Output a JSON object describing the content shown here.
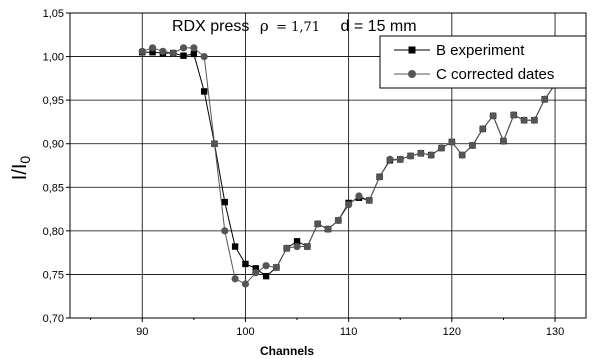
{
  "chart_data": {
    "type": "line",
    "title": "RDX press",
    "title_rho_symbol": "ρ",
    "title_rho_value": "= 1,71",
    "title_d": "d = 15 mm",
    "xlabel": "Channels",
    "ylabel_main": "I/I",
    "ylabel_sub": "0",
    "xlim": [
      83,
      133
    ],
    "ylim": [
      0.7,
      1.05
    ],
    "x_ticks": [
      90,
      100,
      110,
      120,
      130
    ],
    "x_tick_labels": [
      "90",
      "100",
      "110",
      "120",
      "130"
    ],
    "y_ticks": [
      0.7,
      0.75,
      0.8,
      0.85,
      0.9,
      0.95,
      1.0,
      1.05
    ],
    "y_tick_labels": [
      "0,70",
      "0,75",
      "0,80",
      "0,85",
      "0,90",
      "0,95",
      "1,00",
      "1,05"
    ],
    "grid": true,
    "legend_position": "top-right",
    "series": [
      {
        "name": "B experiment",
        "color": "#000000",
        "marker": "square",
        "x": [
          90,
          91,
          92,
          93,
          94,
          95,
          96,
          97,
          98,
          99,
          100,
          101,
          102,
          103,
          104,
          105,
          106,
          107,
          108,
          109,
          110,
          111,
          112,
          113,
          114,
          115,
          116,
          117,
          118,
          119,
          120,
          121,
          122,
          123,
          124,
          125,
          126,
          127,
          128,
          129,
          130
        ],
        "y": [
          1.005,
          1.005,
          1.004,
          1.004,
          1.001,
          1.003,
          0.96,
          0.9,
          0.833,
          0.782,
          0.762,
          0.757,
          0.748,
          0.758,
          0.78,
          0.788,
          0.782,
          0.808,
          0.802,
          0.812,
          0.832,
          0.838,
          0.835,
          0.862,
          0.881,
          0.882,
          0.886,
          0.889,
          0.887,
          0.895,
          0.902,
          0.887,
          0.898,
          0.917,
          0.932,
          0.903,
          0.933,
          0.927,
          0.927,
          0.951,
          0.968
        ]
      },
      {
        "name": "C corrected dates",
        "color": "#555555",
        "marker": "circle",
        "x": [
          90,
          91,
          92,
          93,
          94,
          95,
          96,
          97,
          98,
          99,
          100,
          101,
          102,
          103,
          104,
          105,
          106,
          107,
          108,
          109,
          110,
          111,
          112,
          113,
          114,
          115,
          116,
          117,
          118,
          119,
          120,
          121,
          122,
          123,
          124,
          125,
          126,
          127,
          128,
          129,
          130
        ],
        "y": [
          1.006,
          1.01,
          1.006,
          1.004,
          1.01,
          1.01,
          1.0,
          0.9,
          0.8,
          0.745,
          0.739,
          0.752,
          0.76,
          0.758,
          0.78,
          0.782,
          0.782,
          0.808,
          0.802,
          0.812,
          0.83,
          0.84,
          0.835,
          0.862,
          0.882,
          0.882,
          0.886,
          0.889,
          0.887,
          0.895,
          0.902,
          0.887,
          0.898,
          0.917,
          0.932,
          0.903,
          0.933,
          0.927,
          0.927,
          0.951,
          0.968
        ]
      }
    ]
  }
}
